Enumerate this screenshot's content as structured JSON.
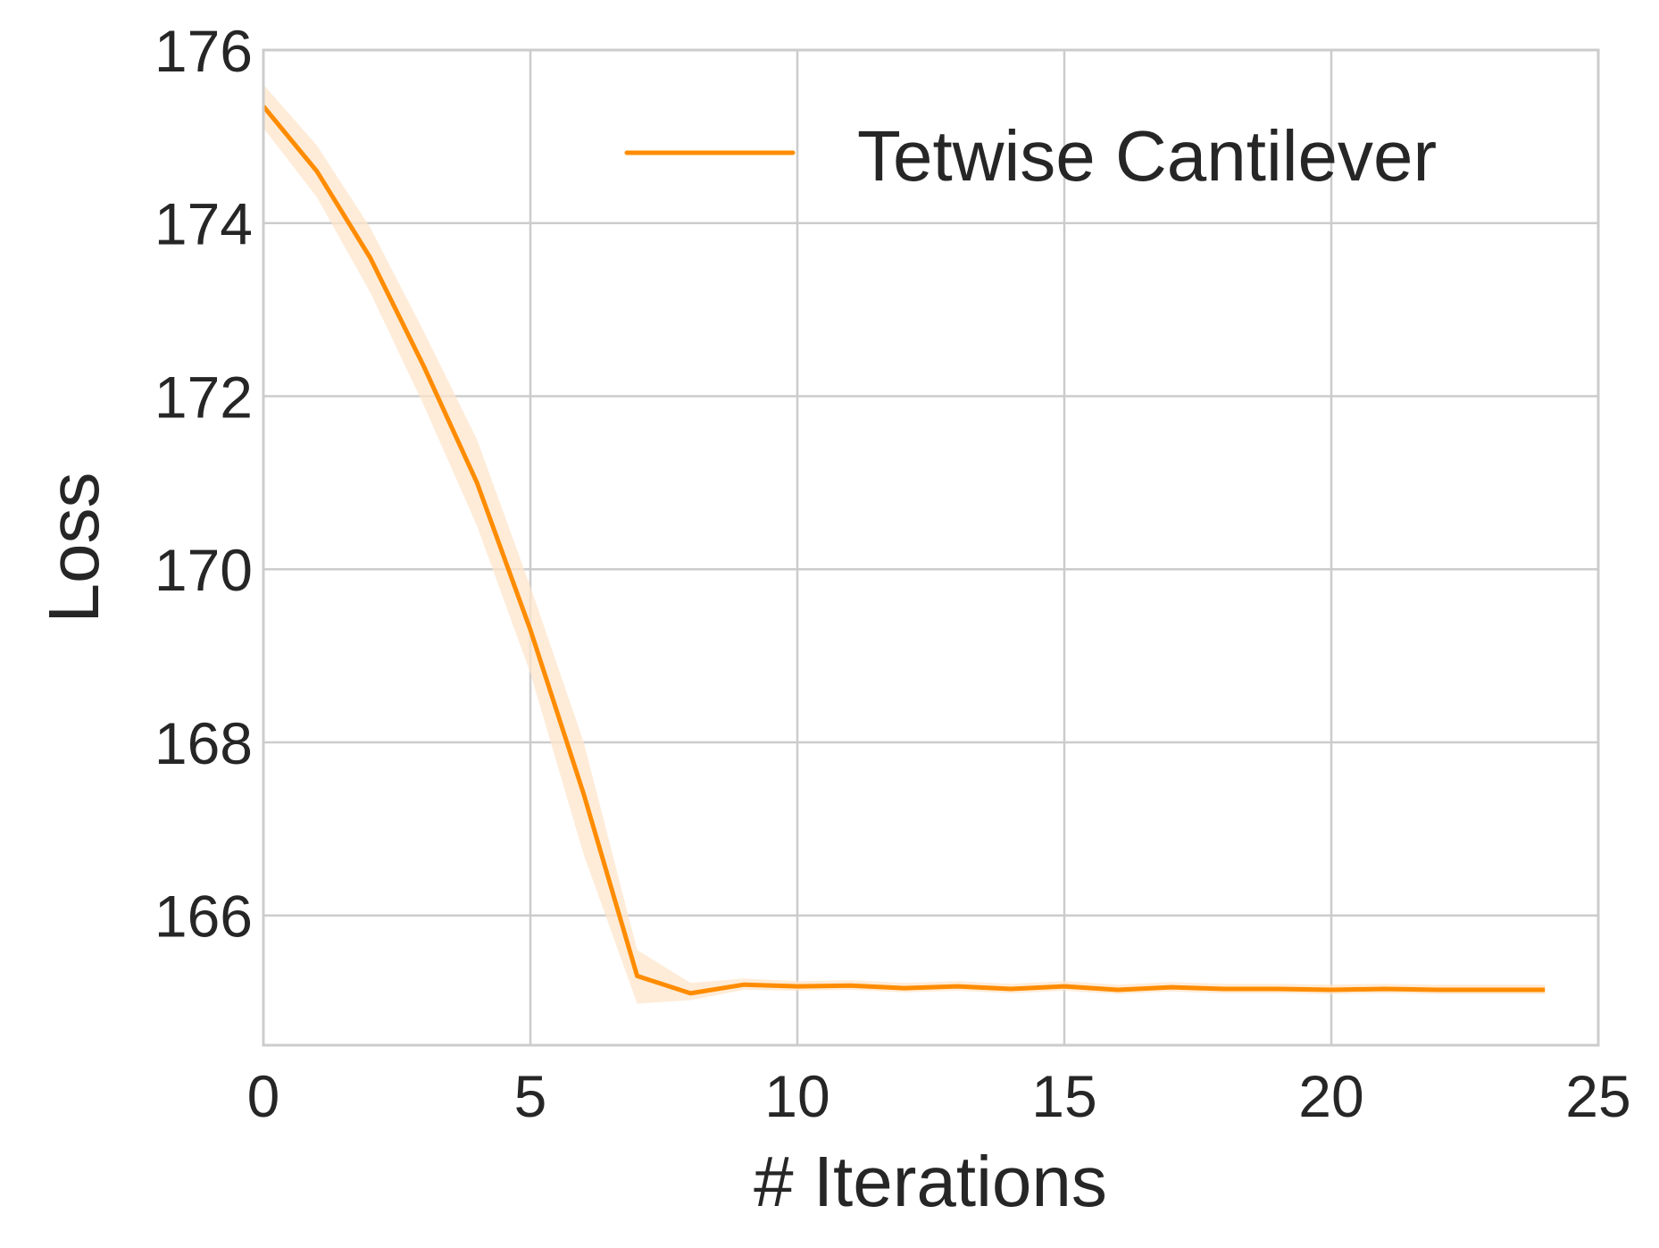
{
  "chart_data": {
    "type": "line",
    "title": "",
    "xlabel": "# Iterations",
    "ylabel": "Loss",
    "xlim": [
      0,
      25
    ],
    "ylim": [
      164.5,
      176
    ],
    "xticks": [
      0,
      5,
      10,
      15,
      20,
      25
    ],
    "yticks": [
      166,
      168,
      170,
      172,
      174,
      176
    ],
    "grid": true,
    "legend_position": "top-right",
    "series": [
      {
        "name": "Tetwise Cantilever",
        "color": "#ff8c00",
        "band_color": "#fde6cc",
        "x": [
          0,
          1,
          2,
          3,
          4,
          5,
          6,
          7,
          8,
          9,
          10,
          11,
          12,
          13,
          14,
          15,
          16,
          17,
          18,
          19,
          20,
          21,
          22,
          23,
          24
        ],
        "y": [
          175.35,
          174.6,
          173.6,
          172.35,
          171.0,
          169.3,
          167.4,
          165.3,
          165.1,
          165.2,
          165.18,
          165.19,
          165.16,
          165.18,
          165.15,
          165.18,
          165.14,
          165.17,
          165.15,
          165.15,
          165.14,
          165.15,
          165.14,
          165.14,
          165.14
        ],
        "lower": [
          175.1,
          174.3,
          173.2,
          171.9,
          170.5,
          168.8,
          166.7,
          164.98,
          165.02,
          165.14,
          165.13,
          165.14,
          165.11,
          165.13,
          165.1,
          165.13,
          165.09,
          165.12,
          165.1,
          165.1,
          165.09,
          165.1,
          165.09,
          165.09,
          165.09
        ],
        "upper": [
          175.6,
          174.9,
          173.95,
          172.75,
          171.5,
          169.8,
          168.0,
          165.6,
          165.22,
          165.27,
          165.24,
          165.25,
          165.22,
          165.24,
          165.21,
          165.24,
          165.2,
          165.23,
          165.21,
          165.21,
          165.2,
          165.21,
          165.2,
          165.2,
          165.2
        ]
      }
    ]
  }
}
